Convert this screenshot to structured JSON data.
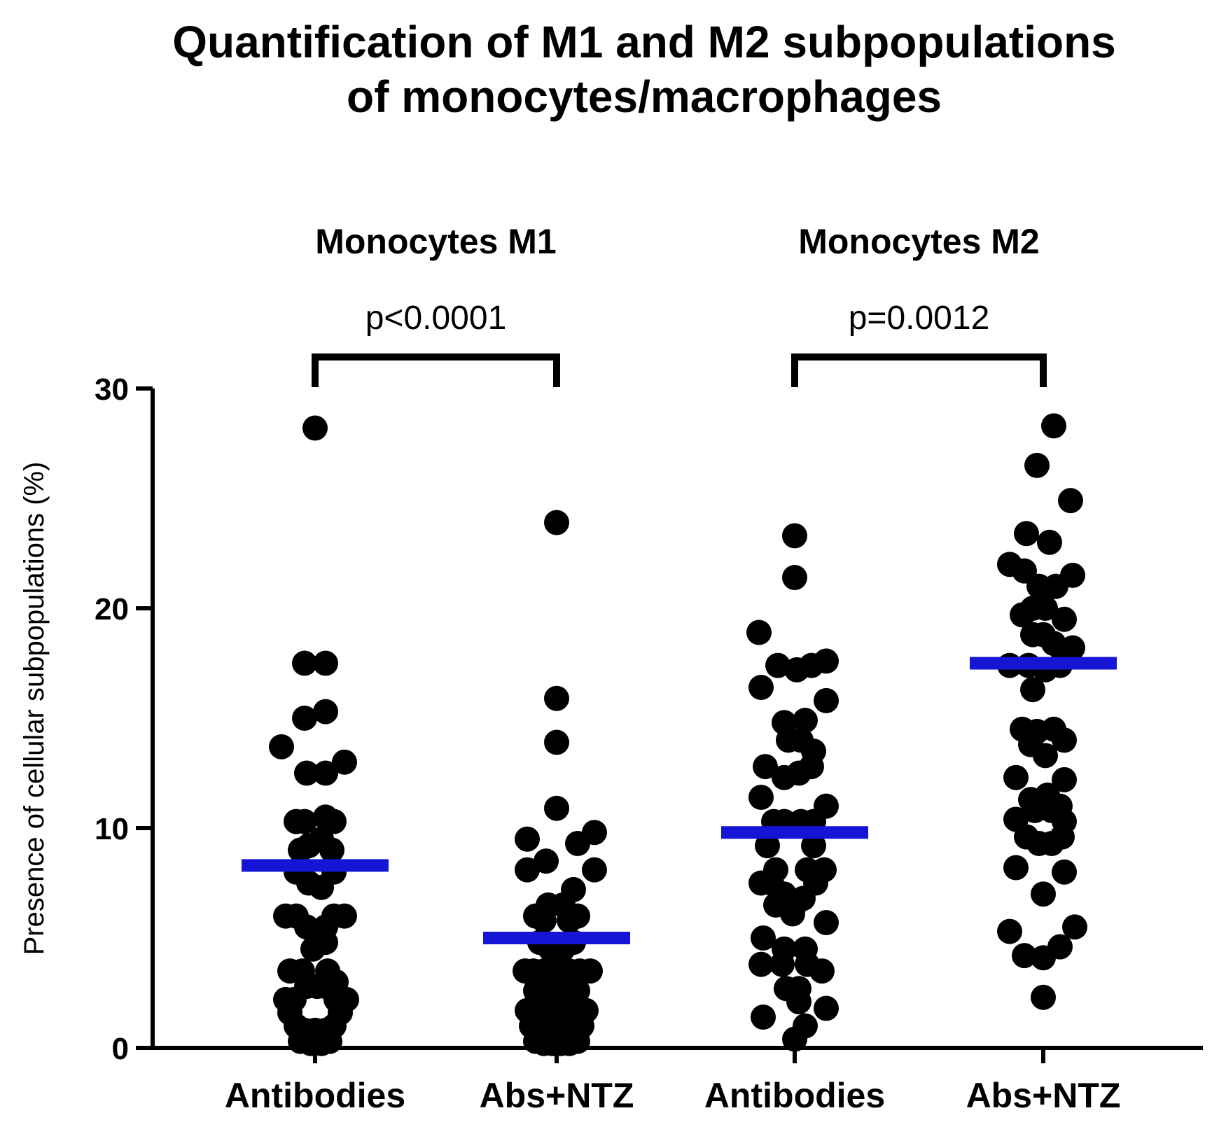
{
  "chart_data": {
    "type": "scatter",
    "title": "Quantification of M1 and M2 subpopulations of monocytes/macrophages",
    "title_lines": [
      "Quantification of M1 and M2 subpopulations",
      "of monocytes/macrophages"
    ],
    "ylabel": "Presence of cellular subpopulations (%)",
    "xlabel": "",
    "ylim": [
      0,
      30
    ],
    "yticks": [
      0,
      10,
      20,
      30
    ],
    "grid": false,
    "categories": [
      "Antibodies",
      "Abs+NTZ",
      "Antibodies",
      "Abs+NTZ"
    ],
    "groups": [
      {
        "label": "Monocytes M1",
        "p_value": "p<0.0001",
        "category_indices": [
          0,
          1
        ]
      },
      {
        "label": "Monocytes M2",
        "p_value": "p=0.0012",
        "category_indices": [
          2,
          3
        ]
      }
    ],
    "mean_line_color": "#1515d6",
    "point_color": "#000000",
    "series": [
      {
        "category": "Antibodies",
        "group": "Monocytes M1",
        "mean": 8.3,
        "points": [
          [
            0,
            28.2
          ],
          [
            -0.5,
            17.5
          ],
          [
            0.5,
            17.5
          ],
          [
            -0.5,
            15.0
          ],
          [
            0.5,
            15.3
          ],
          [
            -1.6,
            13.7
          ],
          [
            1.4,
            13.0
          ],
          [
            -0.4,
            12.5
          ],
          [
            0.5,
            12.5
          ],
          [
            -0.9,
            10.3
          ],
          [
            -0.5,
            10.3
          ],
          [
            0.5,
            10.5
          ],
          [
            0.9,
            10.3
          ],
          [
            -0.7,
            9.0
          ],
          [
            -0.3,
            9.2
          ],
          [
            0.3,
            9.5
          ],
          [
            0.8,
            9.0
          ],
          [
            -0.9,
            8.0
          ],
          [
            -0.3,
            7.5
          ],
          [
            0.3,
            7.3
          ],
          [
            0.9,
            8.0
          ],
          [
            -1.4,
            6.0
          ],
          [
            -0.9,
            6.0
          ],
          [
            0.9,
            6.0
          ],
          [
            1.4,
            6.0
          ],
          [
            -0.4,
            5.5
          ],
          [
            0.5,
            5.5
          ],
          [
            -0.1,
            4.5
          ],
          [
            0.5,
            4.8
          ],
          [
            -1.2,
            3.5
          ],
          [
            -0.6,
            3.5
          ],
          [
            0.6,
            3.5
          ],
          [
            1.0,
            3.0
          ],
          [
            -0.4,
            2.8
          ],
          [
            0.1,
            2.8
          ],
          [
            0.5,
            2.8
          ],
          [
            -1.4,
            2.2
          ],
          [
            -1.0,
            2.2
          ],
          [
            1.0,
            2.2
          ],
          [
            1.5,
            2.2
          ],
          [
            -1.2,
            1.6
          ],
          [
            1.2,
            1.6
          ],
          [
            -0.9,
            1.0
          ],
          [
            -0.5,
            0.8
          ],
          [
            0.0,
            0.8
          ],
          [
            0.5,
            0.8
          ],
          [
            0.9,
            1.0
          ],
          [
            -0.7,
            0.3
          ],
          [
            -0.2,
            0.2
          ],
          [
            0.3,
            0.2
          ],
          [
            0.7,
            0.3
          ]
        ]
      },
      {
        "category": "Abs+NTZ",
        "group": "Monocytes M1",
        "mean": 5.0,
        "points": [
          [
            0,
            23.9
          ],
          [
            0,
            15.9
          ],
          [
            0,
            13.9
          ],
          [
            0,
            10.9
          ],
          [
            -1.4,
            9.5
          ],
          [
            1.0,
            9.3
          ],
          [
            1.8,
            9.8
          ],
          [
            -1.4,
            8.1
          ],
          [
            -0.5,
            8.5
          ],
          [
            1.8,
            8.1
          ],
          [
            0.8,
            7.2
          ],
          [
            -0.4,
            6.5
          ],
          [
            0.3,
            6.5
          ],
          [
            -1.0,
            6.0
          ],
          [
            -0.6,
            5.8
          ],
          [
            0.6,
            5.8
          ],
          [
            1.0,
            6.0
          ],
          [
            -0.8,
            4.8
          ],
          [
            -0.3,
            4.5
          ],
          [
            0.3,
            4.5
          ],
          [
            0.8,
            4.8
          ],
          [
            -1.5,
            3.5
          ],
          [
            -1.1,
            3.5
          ],
          [
            -0.6,
            3.5
          ],
          [
            0.0,
            3.8
          ],
          [
            0.6,
            3.5
          ],
          [
            1.1,
            3.5
          ],
          [
            1.6,
            3.5
          ],
          [
            -1.0,
            2.6
          ],
          [
            -0.5,
            2.6
          ],
          [
            0.0,
            2.9
          ],
          [
            0.5,
            2.6
          ],
          [
            1.0,
            2.6
          ],
          [
            -1.4,
            1.7
          ],
          [
            -1.0,
            1.7
          ],
          [
            -0.5,
            1.7
          ],
          [
            0.0,
            1.7
          ],
          [
            0.5,
            1.7
          ],
          [
            1.0,
            1.7
          ],
          [
            1.4,
            1.7
          ],
          [
            -1.2,
            1.0
          ],
          [
            -0.7,
            1.2
          ],
          [
            -0.3,
            0.8
          ],
          [
            0.3,
            0.8
          ],
          [
            0.7,
            1.2
          ],
          [
            1.2,
            1.0
          ],
          [
            -1.0,
            0.3
          ],
          [
            -0.6,
            0.2
          ],
          [
            -0.2,
            0.2
          ],
          [
            0.2,
            0.2
          ],
          [
            0.6,
            0.2
          ],
          [
            1.0,
            0.3
          ]
        ]
      },
      {
        "category": "Antibodies",
        "group": "Monocytes M2",
        "mean": 9.8,
        "points": [
          [
            0,
            23.3
          ],
          [
            0,
            21.4
          ],
          [
            -1.7,
            18.9
          ],
          [
            -0.8,
            17.4
          ],
          [
            0.1,
            17.2
          ],
          [
            0.8,
            17.4
          ],
          [
            1.5,
            17.6
          ],
          [
            -1.6,
            16.4
          ],
          [
            1.5,
            15.8
          ],
          [
            -0.5,
            14.8
          ],
          [
            0.5,
            14.9
          ],
          [
            -0.3,
            14.0
          ],
          [
            0.3,
            14.0
          ],
          [
            0.9,
            13.5
          ],
          [
            -1.4,
            12.8
          ],
          [
            -0.5,
            12.3
          ],
          [
            0.2,
            12.5
          ],
          [
            0.8,
            12.8
          ],
          [
            -1.6,
            11.4
          ],
          [
            1.5,
            11.0
          ],
          [
            -1.0,
            10.3
          ],
          [
            -0.5,
            10.3
          ],
          [
            0.3,
            10.3
          ],
          [
            0.9,
            10.3
          ],
          [
            -1.3,
            9.2
          ],
          [
            0.9,
            9.2
          ],
          [
            -0.9,
            8.1
          ],
          [
            0.6,
            8.1
          ],
          [
            1.4,
            8.1
          ],
          [
            -1.6,
            7.5
          ],
          [
            -1.1,
            7.5
          ],
          [
            -0.5,
            7.0
          ],
          [
            0.0,
            6.5
          ],
          [
            0.4,
            6.8
          ],
          [
            1.0,
            7.5
          ],
          [
            -0.9,
            6.5
          ],
          [
            -0.1,
            6.1
          ],
          [
            -1.5,
            5.0
          ],
          [
            1.5,
            5.7
          ],
          [
            -0.5,
            4.5
          ],
          [
            0.5,
            4.5
          ],
          [
            -1.6,
            3.8
          ],
          [
            -0.6,
            3.8
          ],
          [
            0.6,
            3.8
          ],
          [
            1.3,
            3.5
          ],
          [
            -0.4,
            2.7
          ],
          [
            0.2,
            2.7
          ],
          [
            0.2,
            2.1
          ],
          [
            1.5,
            1.8
          ],
          [
            -1.5,
            1.4
          ],
          [
            0.5,
            1.0
          ],
          [
            0.0,
            0.4
          ]
        ]
      },
      {
        "category": "Abs+NTZ",
        "group": "Monocytes M2",
        "mean": 17.5,
        "points": [
          [
            0.5,
            28.3
          ],
          [
            -0.3,
            26.5
          ],
          [
            1.3,
            24.9
          ],
          [
            -0.8,
            23.4
          ],
          [
            0.3,
            23.0
          ],
          [
            -1.6,
            22.0
          ],
          [
            -0.9,
            21.7
          ],
          [
            1.4,
            21.5
          ],
          [
            -0.2,
            21.0
          ],
          [
            0.6,
            21.0
          ],
          [
            -1.0,
            19.7
          ],
          [
            -0.5,
            20.0
          ],
          [
            0.1,
            20.0
          ],
          [
            1.0,
            19.5
          ],
          [
            -0.5,
            18.8
          ],
          [
            0.0,
            18.8
          ],
          [
            0.5,
            18.4
          ],
          [
            1.4,
            18.2
          ],
          [
            -1.6,
            17.4
          ],
          [
            -0.7,
            17.4
          ],
          [
            0.1,
            17.2
          ],
          [
            0.8,
            17.4
          ],
          [
            -0.5,
            16.3
          ],
          [
            -1.0,
            14.5
          ],
          [
            -0.3,
            14.4
          ],
          [
            0.5,
            14.5
          ],
          [
            1.0,
            14.0
          ],
          [
            -0.6,
            13.8
          ],
          [
            0.1,
            13.3
          ],
          [
            -1.3,
            12.3
          ],
          [
            1.0,
            12.2
          ],
          [
            -0.6,
            11.3
          ],
          [
            0.2,
            11.5
          ],
          [
            0.8,
            11.0
          ],
          [
            -1.3,
            10.4
          ],
          [
            -0.4,
            10.8
          ],
          [
            0.4,
            10.8
          ],
          [
            1.0,
            10.3
          ],
          [
            -0.8,
            9.6
          ],
          [
            -0.2,
            9.3
          ],
          [
            0.4,
            9.3
          ],
          [
            0.9,
            9.6
          ],
          [
            -1.3,
            8.2
          ],
          [
            1.0,
            8.0
          ],
          [
            0.0,
            7.0
          ],
          [
            -1.6,
            5.3
          ],
          [
            1.5,
            5.5
          ],
          [
            -0.9,
            4.2
          ],
          [
            0.0,
            4.1
          ],
          [
            0.8,
            4.6
          ],
          [
            0.0,
            2.3
          ]
        ]
      }
    ]
  }
}
